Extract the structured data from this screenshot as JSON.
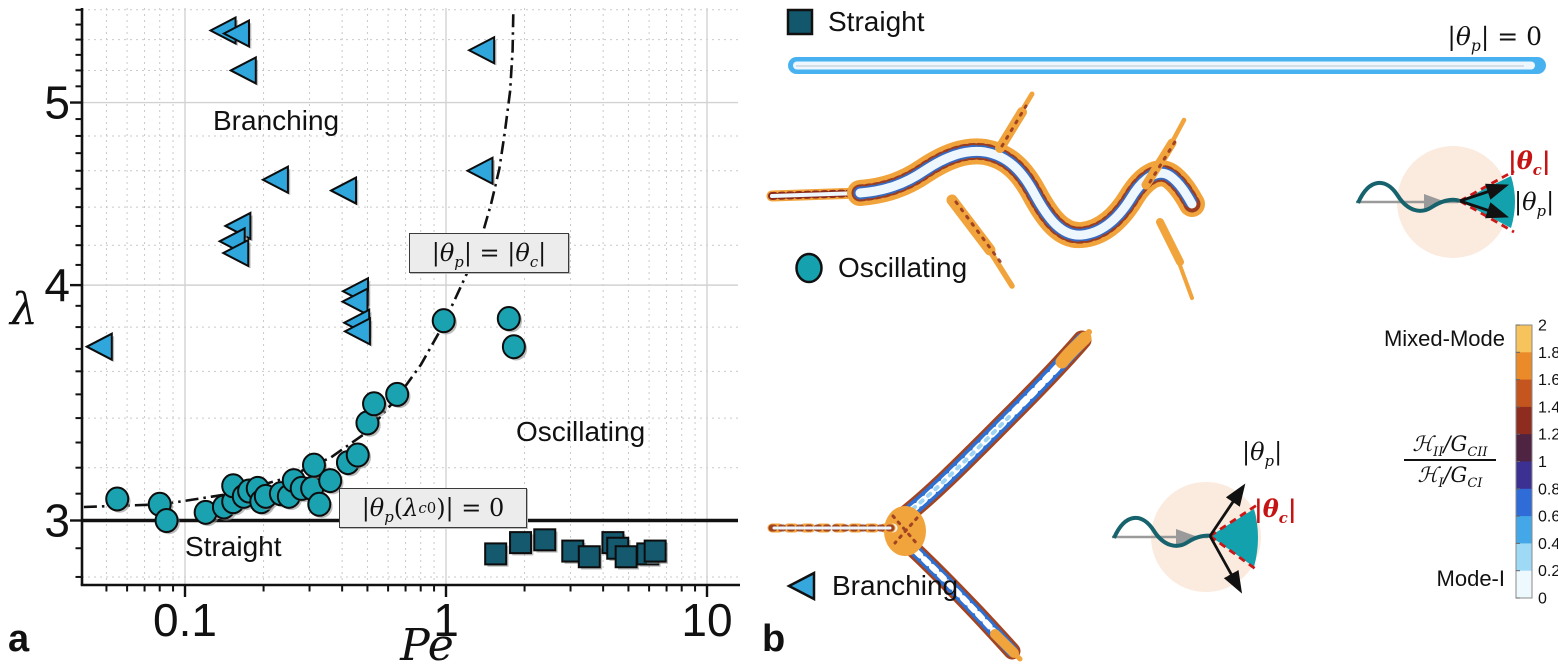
{
  "panel_labels": {
    "a": "a",
    "b": "b"
  },
  "chart_data": {
    "type": "scatter",
    "title": "",
    "xlabel_html": "<i>P</i>e",
    "ylabel_html": "<i>&lambda;</i>",
    "x_axis": {
      "scale": "log",
      "min": 0.0403,
      "max": 13.2,
      "major_ticks": [
        0.1,
        1,
        10
      ],
      "major_tick_labels": [
        "0.1",
        "1",
        "10"
      ],
      "minor_ticks": [
        0.05,
        0.06,
        0.07,
        0.08,
        0.09,
        0.2,
        0.3,
        0.4,
        0.5,
        0.6,
        0.7,
        0.8,
        0.9,
        2,
        3,
        4,
        5,
        6,
        7,
        8,
        9
      ]
    },
    "y_axis": {
      "scale": "log",
      "min": 2.77,
      "max": 5.61,
      "major_ticks": [
        3,
        4,
        5
      ],
      "major_tick_labels": [
        "3",
        "4",
        "5"
      ],
      "minor_ticks": [
        2.8,
        2.9,
        3.1,
        3.2,
        3.3,
        3.4,
        3.5,
        3.6,
        3.7,
        3.8,
        3.9,
        4.1,
        4.2,
        4.3,
        4.4,
        4.5,
        4.6,
        4.7,
        4.8,
        4.9,
        5.1,
        5.2,
        5.3,
        5.4,
        5.5,
        5.6
      ],
      "minor_gridlines": [
        2.8,
        3.2,
        3.4,
        3.6,
        3.8,
        4.2,
        4.4,
        4.6,
        4.8,
        5.2,
        5.4,
        5.6
      ]
    },
    "grid": "on",
    "series": [
      {
        "name": "Branching",
        "marker": "triangle-left",
        "color": "#2fa6dc",
        "points": [
          [
            0.048,
            3.71
          ],
          [
            0.143,
            5.46
          ],
          [
            0.161,
            5.44
          ],
          [
            0.171,
            5.2
          ],
          [
            0.227,
            4.55
          ],
          [
            0.414,
            4.49
          ],
          [
            0.163,
            4.3
          ],
          [
            0.155,
            4.22
          ],
          [
            0.16,
            4.16
          ],
          [
            0.46,
            3.97
          ],
          [
            0.458,
            3.92
          ],
          [
            0.465,
            3.82
          ],
          [
            0.468,
            3.78
          ],
          [
            1.4,
            5.33
          ],
          [
            1.38,
            4.6
          ]
        ]
      },
      {
        "name": "Oscillating",
        "marker": "circle",
        "color": "#1ba2b0",
        "points": [
          [
            0.055,
            3.08
          ],
          [
            0.08,
            3.06
          ],
          [
            0.085,
            3.0
          ],
          [
            0.12,
            3.03
          ],
          [
            0.141,
            3.05
          ],
          [
            0.153,
            3.07
          ],
          [
            0.153,
            3.13
          ],
          [
            0.168,
            3.09
          ],
          [
            0.176,
            3.11
          ],
          [
            0.19,
            3.12
          ],
          [
            0.196,
            3.07
          ],
          [
            0.204,
            3.09
          ],
          [
            0.233,
            3.1
          ],
          [
            0.25,
            3.09
          ],
          [
            0.261,
            3.15
          ],
          [
            0.28,
            3.12
          ],
          [
            0.307,
            3.12
          ],
          [
            0.312,
            3.21
          ],
          [
            0.327,
            3.06
          ],
          [
            0.36,
            3.15
          ],
          [
            0.421,
            3.22
          ],
          [
            0.459,
            3.25
          ],
          [
            0.5,
            3.38
          ],
          [
            0.53,
            3.46
          ],
          [
            0.65,
            3.5
          ],
          [
            0.98,
            3.83
          ],
          [
            1.74,
            3.84
          ],
          [
            1.82,
            3.71
          ]
        ]
      },
      {
        "name": "Straight",
        "marker": "square",
        "color": "#14596e",
        "points": [
          [
            1.55,
            2.88
          ],
          [
            1.93,
            2.92
          ],
          [
            2.39,
            2.93
          ],
          [
            3.06,
            2.89
          ],
          [
            3.54,
            2.87
          ],
          [
            4.36,
            2.92
          ],
          [
            4.55,
            2.9
          ],
          [
            4.9,
            2.87
          ],
          [
            5.93,
            2.88
          ],
          [
            6.33,
            2.89
          ]
        ]
      }
    ],
    "boundary_curve": {
      "style": "dash-dot",
      "color": "#111111",
      "label_html": "|<i>&theta;<sub>p</sub></i>| = |<i>&theta;<sub>c</sub></i>|",
      "points": [
        [
          0.041,
          3.05
        ],
        [
          0.082,
          3.06
        ],
        [
          0.15,
          3.1
        ],
        [
          0.244,
          3.16
        ],
        [
          0.362,
          3.24
        ],
        [
          0.494,
          3.34
        ],
        [
          0.644,
          3.48
        ],
        [
          0.802,
          3.63
        ],
        [
          0.956,
          3.79
        ],
        [
          1.09,
          3.94
        ],
        [
          1.225,
          4.08
        ],
        [
          1.36,
          4.23
        ],
        [
          1.49,
          4.42
        ],
        [
          1.6,
          4.61
        ],
        [
          1.68,
          4.82
        ],
        [
          1.76,
          5.07
        ],
        [
          1.8,
          5.33
        ],
        [
          1.81,
          5.58
        ]
      ]
    },
    "hline": {
      "y": 3,
      "style": "solid",
      "color": "#111111",
      "label_html": "|<i>&theta;<sub>p</sub></i>(<i>&lambda;</i><sub><i>c</i>0</sub>)| = 0"
    },
    "region_labels": [
      {
        "text": "Branching"
      },
      {
        "text": "Oscillating"
      },
      {
        "text": "Straight"
      }
    ]
  },
  "panel_b": {
    "legend": [
      {
        "label": "Straight",
        "marker": "square",
        "color": "#12576b"
      },
      {
        "label": "Oscillating",
        "marker": "circle",
        "color": "#16a1af"
      },
      {
        "label": "Branching",
        "marker": "triangle-left",
        "color": "#35a7dc"
      }
    ],
    "straight_annotation_html": "|<i>&theta;<sub>p</sub></i>| = 0",
    "inset_oscillating": {
      "theta_c_html": "|<i>&theta;<sub>c</sub></i>|",
      "theta_p_html": "|<i>&theta;<sub>p</sub></i>|"
    },
    "inset_branching": {
      "theta_p_html": "|<i>&theta;<sub>p</sub></i>|",
      "theta_c_html": "|<i>&theta;<sub>c</sub></i>|"
    },
    "colorbar": {
      "top_label": "Mixed-Mode",
      "bottom_label": "Mode-I",
      "ratio_numerator_html": "&#8459;<sub>II</sub>/<i>G</i><sub>CII</sub>",
      "ratio_denominator_html": "&#8459;<sub>I</sub>/<i>G</i><sub>CI</sub>",
      "tick_labels": [
        "2",
        "1.8",
        "1.6",
        "1.4",
        "1.2",
        "1",
        "0.8",
        "0.6",
        "0.4",
        "0.2",
        "0"
      ],
      "colors_top_to_bottom": [
        "#f6c35c",
        "#ea8a28",
        "#c4551f",
        "#8e2c20",
        "#4f2342",
        "#3c3093",
        "#2f6cd8",
        "#43a7e8",
        "#9ed9f6",
        "#eef9fd"
      ]
    },
    "crack_colors": {
      "orange": "#f1a33c",
      "speckle_dark_red": "#8c2b1b",
      "blue": "#2e6fd2",
      "pale_core": "#edf7fd",
      "straight_blue": "#48b2f0",
      "wave_teal": "#16636e",
      "wedge_teal": "#12a1ad",
      "inset_peach": "#fbeade",
      "red_dashed": "#cc1717"
    }
  }
}
